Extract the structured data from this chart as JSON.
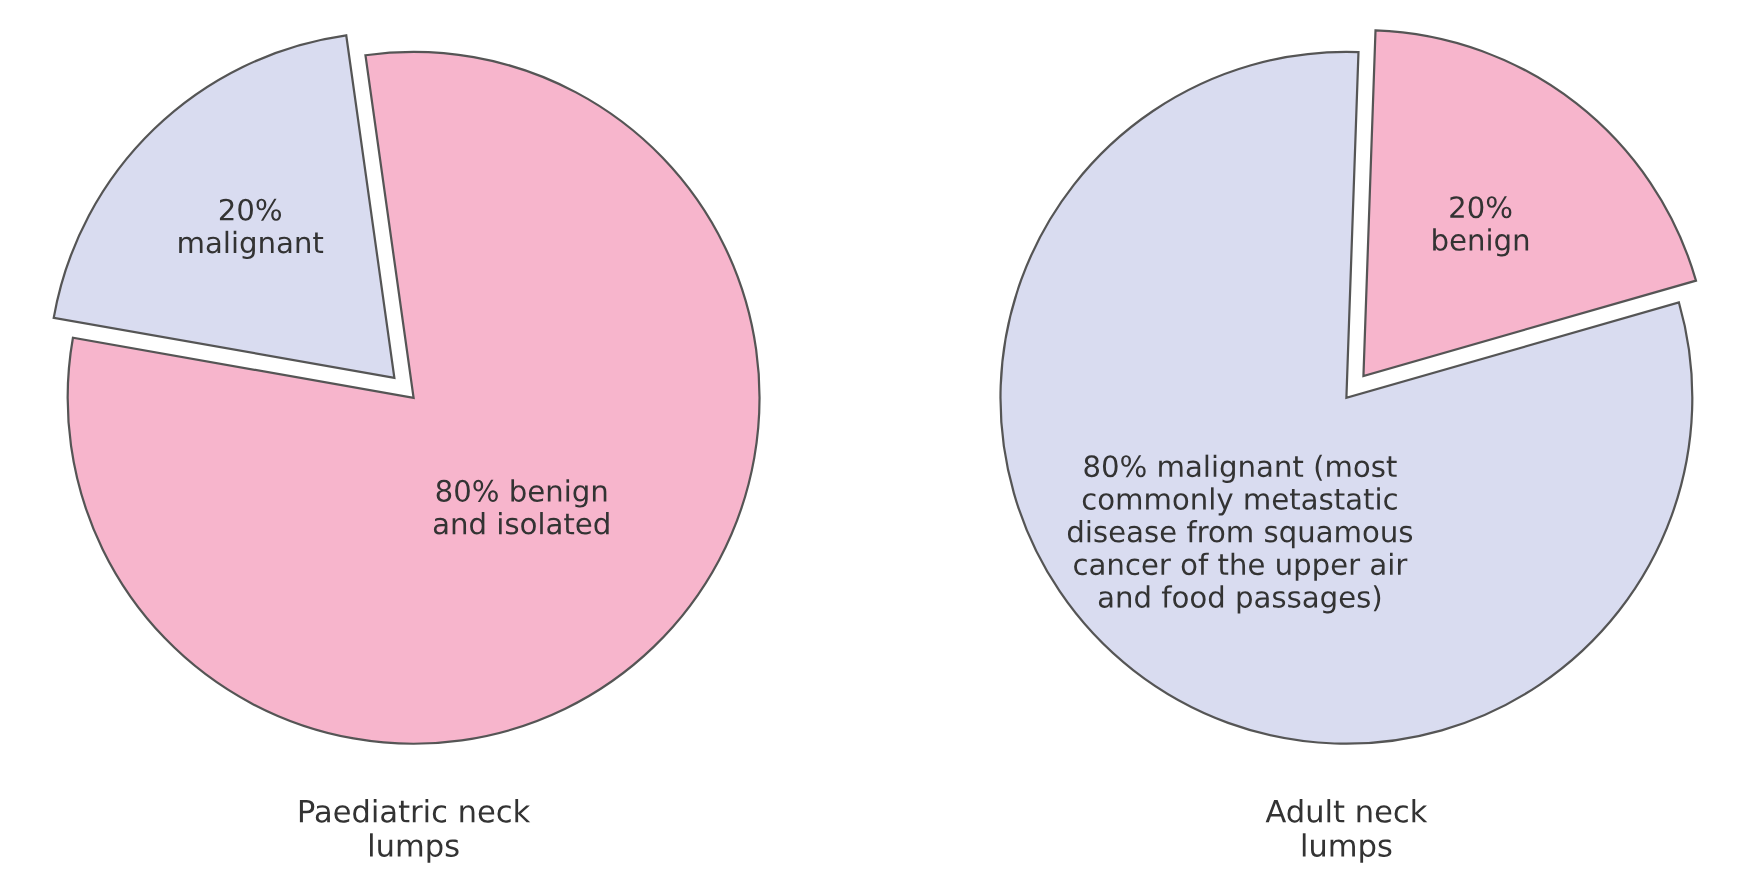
{
  "chart_data": [
    {
      "type": "pie",
      "title": "Paediatric neck\nlumps",
      "categories": [
        "20%\nmalignant",
        "80% benign\nand isolated"
      ],
      "values": [
        20,
        80
      ],
      "colors": [
        "#d9dcf0",
        "#f7b5cc"
      ]
    },
    {
      "type": "pie",
      "title": "Adult neck\nlumps",
      "categories": [
        "20%\nbenign",
        "80% malignant (most\ncommonly metastatic\ndisease from squamous\ncancer of the upper air\nand food passages)"
      ],
      "values": [
        20,
        80
      ],
      "colors": [
        "#f7b5cc",
        "#d9dcf0"
      ]
    }
  ]
}
